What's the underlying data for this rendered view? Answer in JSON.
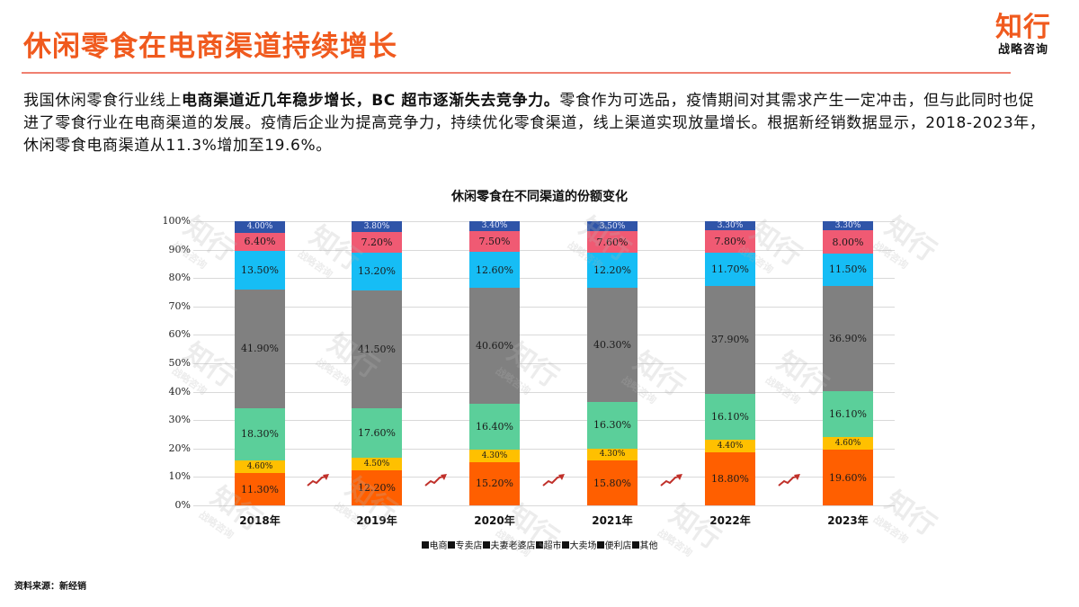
{
  "header": {
    "title": "休闲零食在电商渠道持续增长",
    "logo_main": "知行",
    "logo_sub": "战略咨询"
  },
  "intro": {
    "part1": "我国休闲零食行业线上",
    "bold": "电商渠道近几年稳步增长，BC 超市逐渐失去竞争力。",
    "part2": "零食作为可选品，疫情期间对其需求产生一定冲击，但与此同时也促进了零食行业在电商渠道的发展。疫情后企业为提高竞争力，持续优化零食渠道，线上渠道实现放量增长。根据新经销数据显示，2018-2023年，休闲零食电商渠道从11.3%增加至19.6%。"
  },
  "colors": {
    "accent": "#f05a1e",
    "电商": "#ff5f00",
    "专卖店": "#ffc000",
    "夫妻老婆店": "#5bcf9a",
    "超市": "#808080",
    "大卖场": "#16bdf5",
    "便利店": "#f05a73",
    "其他": "#2f54a8"
  },
  "chart_data": {
    "type": "bar",
    "stacked": true,
    "title": "休闲零食在不同渠道的份额变化",
    "xlabel": "",
    "ylabel": "",
    "ylim": [
      0,
      100
    ],
    "yticks": [
      "0%",
      "10%",
      "20%",
      "30%",
      "40%",
      "50%",
      "60%",
      "70%",
      "80%",
      "90%",
      "100%"
    ],
    "categories": [
      "2018年",
      "2019年",
      "2020年",
      "2021年",
      "2022年",
      "2023年"
    ],
    "series": [
      {
        "name": "电商",
        "values": [
          11.3,
          12.2,
          15.2,
          15.8,
          18.8,
          19.6
        ],
        "labels": [
          "11.30%",
          "12.20%",
          "15.20%",
          "15.80%",
          "18.80%",
          "19.60%"
        ]
      },
      {
        "name": "专卖店",
        "values": [
          4.6,
          4.5,
          4.3,
          4.3,
          4.4,
          4.6
        ],
        "labels": [
          "4.60%",
          "4.50%",
          "4.30%",
          "4.30%",
          "4.40%",
          "4.60%"
        ]
      },
      {
        "name": "夫妻老婆店",
        "values": [
          18.3,
          17.6,
          16.4,
          16.3,
          16.1,
          16.1
        ],
        "labels": [
          "18.30%",
          "17.60%",
          "16.40%",
          "16.30%",
          "16.10%",
          "16.10%"
        ]
      },
      {
        "name": "超市",
        "values": [
          41.9,
          41.5,
          40.6,
          40.3,
          37.9,
          36.9
        ],
        "labels": [
          "41.90%",
          "41.50%",
          "40.60%",
          "40.30%",
          "37.90%",
          "36.90%"
        ]
      },
      {
        "name": "大卖场",
        "values": [
          13.5,
          13.2,
          12.6,
          12.2,
          11.7,
          11.5
        ],
        "labels": [
          "13.50%",
          "13.20%",
          "12.60%",
          "12.20%",
          "11.70%",
          "11.50%"
        ]
      },
      {
        "name": "便利店",
        "values": [
          6.4,
          7.2,
          7.5,
          7.6,
          7.8,
          8.0
        ],
        "labels": [
          "6.40%",
          "7.20%",
          "7.50%",
          "7.60%",
          "7.80%",
          "8.00%"
        ]
      },
      {
        "name": "其他",
        "values": [
          4.0,
          3.8,
          3.4,
          3.5,
          3.3,
          3.3
        ],
        "labels": [
          "4.00%",
          "3.80%",
          "3.40%",
          "3.50%",
          "3.30%",
          "3.30%"
        ]
      }
    ],
    "legend": [
      "电商",
      "专卖店",
      "夫妻老婆店",
      "超市",
      "大卖场",
      "便利店",
      "其他"
    ],
    "legend_position": "bottom",
    "grid": true,
    "annotations": [
      "red upward trend arrows between each pair of bars"
    ]
  },
  "footer": {
    "source": "资料来源：新经销"
  },
  "watermark": {
    "main": "知行",
    "sub": "战略咨询"
  }
}
